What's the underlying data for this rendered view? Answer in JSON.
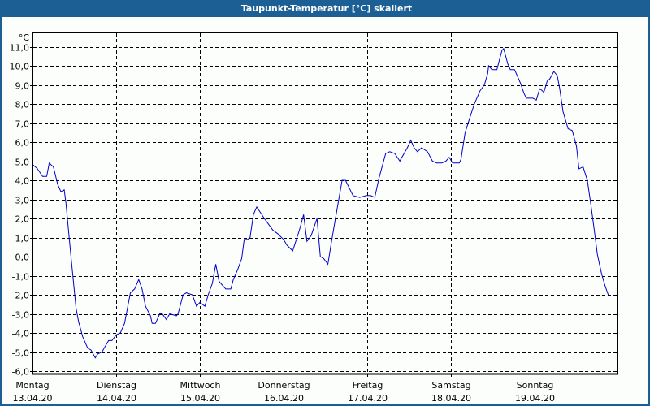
{
  "window": {
    "title": "Taupunkt-Temperatur [°C] skaliert"
  },
  "colors": {
    "titlebar": "#1b5f94",
    "line": "#0000c8",
    "background": "#fcfefc",
    "grid": "#000000"
  },
  "chart_data": {
    "type": "line",
    "title": "Taupunkt-Temperatur [°C] skaliert",
    "xlabel": "",
    "ylabel": "°C",
    "ylim": [
      -6.0,
      11.0
    ],
    "grid": true,
    "legend": null,
    "y_ticks": [
      "11,0",
      "10,0",
      "9,0",
      "8,0",
      "7,0",
      "6,0",
      "5,0",
      "4,0",
      "3,0",
      "2,0",
      "1,0",
      "0,0",
      "-1,0",
      "-2,0",
      "-3,0",
      "-4,0",
      "-5,0",
      "-6,0"
    ],
    "x_ticks": [
      {
        "day": "Montag",
        "date": "13.04.20"
      },
      {
        "day": "Dienstag",
        "date": "14.04.20"
      },
      {
        "day": "Mittwoch",
        "date": "15.04.20"
      },
      {
        "day": "Donnerstag",
        "date": "16.04.20"
      },
      {
        "day": "Freitag",
        "date": "17.04.20"
      },
      {
        "day": "Samstag",
        "date": "18.04.20"
      },
      {
        "day": "Sonntag",
        "date": "19.04.20"
      }
    ],
    "x_unit": "days since 13.04.20 00:00",
    "series": [
      {
        "name": "Taupunkt-Temperatur",
        "points": [
          [
            0.01,
            4.8
          ],
          [
            0.06,
            4.6
          ],
          [
            0.12,
            4.2
          ],
          [
            0.17,
            4.2
          ],
          [
            0.2,
            4.9
          ],
          [
            0.25,
            4.7
          ],
          [
            0.3,
            3.8
          ],
          [
            0.34,
            3.4
          ],
          [
            0.38,
            3.5
          ],
          [
            0.4,
            2.8
          ],
          [
            0.46,
            0.0
          ],
          [
            0.52,
            -2.7
          ],
          [
            0.55,
            -3.4
          ],
          [
            0.6,
            -4.2
          ],
          [
            0.66,
            -4.8
          ],
          [
            0.7,
            -4.9
          ],
          [
            0.75,
            -5.3
          ],
          [
            0.78,
            -5.1
          ],
          [
            0.83,
            -5.0
          ],
          [
            0.91,
            -4.4
          ],
          [
            0.95,
            -4.4
          ],
          [
            1.0,
            -4.1
          ],
          [
            1.05,
            -4.0
          ],
          [
            1.1,
            -3.5
          ],
          [
            1.17,
            -1.9
          ],
          [
            1.22,
            -1.7
          ],
          [
            1.27,
            -1.2
          ],
          [
            1.31,
            -1.7
          ],
          [
            1.35,
            -2.6
          ],
          [
            1.41,
            -3.1
          ],
          [
            1.43,
            -3.5
          ],
          [
            1.47,
            -3.5
          ],
          [
            1.52,
            -3.0
          ],
          [
            1.55,
            -3.0
          ],
          [
            1.6,
            -3.3
          ],
          [
            1.64,
            -3.0
          ],
          [
            1.72,
            -3.1
          ],
          [
            1.74,
            -3.0
          ],
          [
            1.8,
            -2.0
          ],
          [
            1.84,
            -1.9
          ],
          [
            1.91,
            -2.0
          ],
          [
            1.96,
            -2.6
          ],
          [
            2.0,
            -2.4
          ],
          [
            2.06,
            -2.6
          ],
          [
            2.1,
            -2.0
          ],
          [
            2.15,
            -1.4
          ],
          [
            2.19,
            -0.4
          ],
          [
            2.23,
            -1.3
          ],
          [
            2.31,
            -1.7
          ],
          [
            2.37,
            -1.7
          ],
          [
            2.4,
            -1.2
          ],
          [
            2.45,
            -0.7
          ],
          [
            2.5,
            -0.1
          ],
          [
            2.53,
            0.9
          ],
          [
            2.57,
            0.9
          ],
          [
            2.6,
            1.0
          ],
          [
            2.64,
            2.2
          ],
          [
            2.68,
            2.6
          ],
          [
            2.77,
            2.0
          ],
          [
            2.87,
            1.4
          ],
          [
            2.93,
            1.2
          ],
          [
            3.0,
            0.9
          ],
          [
            3.04,
            0.6
          ],
          [
            3.11,
            0.3
          ],
          [
            3.19,
            1.4
          ],
          [
            3.24,
            2.2
          ],
          [
            3.28,
            0.8
          ],
          [
            3.33,
            1.1
          ],
          [
            3.4,
            2.0
          ],
          [
            3.44,
            0.0
          ],
          [
            3.48,
            -0.1
          ],
          [
            3.53,
            -0.4
          ],
          [
            3.57,
            0.7
          ],
          [
            3.62,
            2.0
          ],
          [
            3.7,
            4.0
          ],
          [
            3.74,
            4.0
          ],
          [
            3.83,
            3.2
          ],
          [
            3.91,
            3.1
          ],
          [
            3.99,
            3.2
          ],
          [
            4.04,
            3.2
          ],
          [
            4.09,
            3.1
          ],
          [
            4.14,
            4.1
          ],
          [
            4.22,
            5.4
          ],
          [
            4.27,
            5.5
          ],
          [
            4.33,
            5.4
          ],
          [
            4.39,
            5.0
          ],
          [
            4.4,
            5.1
          ],
          [
            4.48,
            5.7
          ],
          [
            4.52,
            6.1
          ],
          [
            4.56,
            5.7
          ],
          [
            4.6,
            5.5
          ],
          [
            4.65,
            5.7
          ],
          [
            4.72,
            5.5
          ],
          [
            4.78,
            5.0
          ],
          [
            4.83,
            4.9
          ],
          [
            4.89,
            4.9
          ],
          [
            4.94,
            5.0
          ],
          [
            4.98,
            5.2
          ],
          [
            5.02,
            4.9
          ],
          [
            5.1,
            4.9
          ],
          [
            5.12,
            5.1
          ],
          [
            5.17,
            6.5
          ],
          [
            5.22,
            7.2
          ],
          [
            5.28,
            8.0
          ],
          [
            5.35,
            8.7
          ],
          [
            5.4,
            9.0
          ],
          [
            5.44,
            9.6
          ],
          [
            5.45,
            10.0
          ],
          [
            5.49,
            9.8
          ],
          [
            5.55,
            9.8
          ],
          [
            5.58,
            10.3
          ],
          [
            5.61,
            10.8
          ],
          [
            5.63,
            10.9
          ],
          [
            5.68,
            10.1
          ],
          [
            5.71,
            9.8
          ],
          [
            5.76,
            9.8
          ],
          [
            5.8,
            9.4
          ],
          [
            5.83,
            9.1
          ],
          [
            5.87,
            8.6
          ],
          [
            5.9,
            8.3
          ],
          [
            5.98,
            8.3
          ],
          [
            6.02,
            8.2
          ],
          [
            6.06,
            8.8
          ],
          [
            6.09,
            8.7
          ],
          [
            6.11,
            8.6
          ],
          [
            6.15,
            9.2
          ],
          [
            6.18,
            9.3
          ],
          [
            6.23,
            9.7
          ],
          [
            6.27,
            9.5
          ],
          [
            6.3,
            8.8
          ],
          [
            6.34,
            7.6
          ],
          [
            6.4,
            6.7
          ],
          [
            6.45,
            6.6
          ],
          [
            6.5,
            5.8
          ],
          [
            6.53,
            4.6
          ],
          [
            6.58,
            4.7
          ],
          [
            6.63,
            4.0
          ],
          [
            6.67,
            2.8
          ],
          [
            6.71,
            1.5
          ],
          [
            6.75,
            0.1
          ],
          [
            6.8,
            -0.9
          ],
          [
            6.84,
            -1.5
          ],
          [
            6.88,
            -2.0
          ]
        ]
      }
    ]
  }
}
